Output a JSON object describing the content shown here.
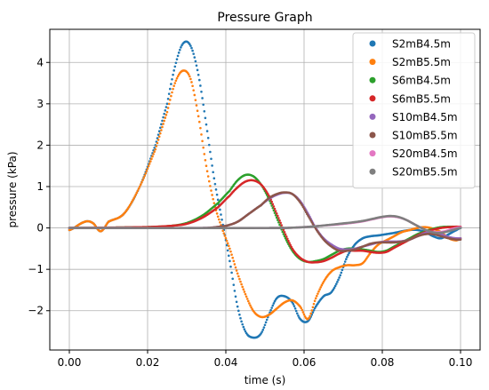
{
  "chart_data": {
    "type": "scatter",
    "title": "Pressure Graph",
    "xlabel": "time (s)",
    "ylabel": "pressure (kPa)",
    "xlim": [
      -0.005,
      0.105
    ],
    "ylim": [
      -2.95,
      4.8
    ],
    "xticks": [
      0.0,
      0.02,
      0.04,
      0.06,
      0.08,
      0.1
    ],
    "xtick_labels": [
      "0.00",
      "0.02",
      "0.04",
      "0.06",
      "0.08",
      "0.10"
    ],
    "yticks": [
      -2,
      -1,
      0,
      1,
      2,
      3,
      4
    ],
    "ytick_labels": [
      "−2",
      "−1",
      "0",
      "1",
      "2",
      "3",
      "4"
    ],
    "grid": true,
    "legend_position": "top-right",
    "series": [
      {
        "name": "S2mB4.5m",
        "color": "#1f77b4",
        "x": [
          0.0,
          0.004,
          0.006,
          0.008,
          0.01,
          0.014,
          0.018,
          0.022,
          0.025,
          0.027,
          0.029,
          0.031,
          0.033,
          0.035,
          0.037,
          0.039,
          0.041,
          0.043,
          0.045,
          0.047,
          0.049,
          0.051,
          0.053,
          0.055,
          0.057,
          0.059,
          0.061,
          0.063,
          0.065,
          0.067,
          0.069,
          0.071,
          0.073,
          0.075,
          0.077,
          0.079,
          0.081,
          0.083,
          0.085,
          0.087,
          0.089,
          0.091,
          0.093,
          0.095,
          0.097,
          0.099,
          0.1
        ],
        "y": [
          -0.05,
          0.15,
          0.12,
          -0.08,
          0.15,
          0.35,
          1.0,
          2.0,
          3.0,
          3.9,
          4.45,
          4.4,
          3.7,
          2.5,
          1.2,
          0.2,
          -0.8,
          -1.9,
          -2.5,
          -2.65,
          -2.55,
          -2.1,
          -1.7,
          -1.65,
          -1.8,
          -2.2,
          -2.25,
          -1.9,
          -1.65,
          -1.55,
          -1.2,
          -0.7,
          -0.4,
          -0.25,
          -0.2,
          -0.18,
          -0.15,
          -0.12,
          -0.08,
          -0.05,
          -0.05,
          -0.1,
          -0.2,
          -0.25,
          -0.15,
          -0.05,
          0.0
        ]
      },
      {
        "name": "S2mB5.5m",
        "color": "#ff7f0e",
        "x": [
          0.0,
          0.004,
          0.006,
          0.008,
          0.01,
          0.014,
          0.018,
          0.022,
          0.025,
          0.027,
          0.029,
          0.031,
          0.033,
          0.035,
          0.037,
          0.039,
          0.041,
          0.043,
          0.045,
          0.047,
          0.049,
          0.051,
          0.053,
          0.055,
          0.057,
          0.059,
          0.061,
          0.063,
          0.065,
          0.067,
          0.069,
          0.071,
          0.073,
          0.075,
          0.077,
          0.079,
          0.081,
          0.083,
          0.085,
          0.087,
          0.089,
          0.091,
          0.093,
          0.095,
          0.097,
          0.099,
          0.1
        ],
        "y": [
          -0.05,
          0.15,
          0.12,
          -0.08,
          0.15,
          0.35,
          1.0,
          1.9,
          2.8,
          3.5,
          3.8,
          3.6,
          2.7,
          1.5,
          0.6,
          0.0,
          -0.5,
          -1.1,
          -1.6,
          -2.0,
          -2.15,
          -2.1,
          -1.95,
          -1.8,
          -1.75,
          -1.9,
          -2.2,
          -1.7,
          -1.3,
          -1.05,
          -0.95,
          -0.9,
          -0.9,
          -0.85,
          -0.6,
          -0.4,
          -0.3,
          -0.2,
          -0.1,
          -0.05,
          0.0,
          0.02,
          -0.02,
          -0.1,
          -0.25,
          -0.3,
          -0.25
        ]
      },
      {
        "name": "S6mB4.5m",
        "color": "#2ca02c",
        "x": [
          0.0,
          0.02,
          0.026,
          0.03,
          0.034,
          0.038,
          0.041,
          0.043,
          0.045,
          0.047,
          0.049,
          0.051,
          0.053,
          0.055,
          0.057,
          0.059,
          0.061,
          0.063,
          0.065,
          0.067,
          0.069,
          0.071,
          0.073,
          0.075,
          0.077,
          0.079,
          0.081,
          0.083,
          0.085,
          0.087,
          0.089,
          0.091,
          0.093,
          0.095,
          0.097,
          0.099,
          0.1
        ],
        "y": [
          0.0,
          0.02,
          0.05,
          0.12,
          0.3,
          0.6,
          0.9,
          1.15,
          1.28,
          1.25,
          1.05,
          0.7,
          0.25,
          -0.2,
          -0.55,
          -0.75,
          -0.82,
          -0.8,
          -0.75,
          -0.65,
          -0.55,
          -0.5,
          -0.5,
          -0.52,
          -0.55,
          -0.58,
          -0.55,
          -0.45,
          -0.35,
          -0.25,
          -0.15,
          -0.08,
          -0.02,
          0.02,
          0.03,
          0.03,
          0.02
        ]
      },
      {
        "name": "S6mB5.5m",
        "color": "#d62728",
        "x": [
          0.0,
          0.02,
          0.026,
          0.03,
          0.034,
          0.038,
          0.041,
          0.043,
          0.045,
          0.047,
          0.049,
          0.051,
          0.053,
          0.055,
          0.057,
          0.059,
          0.061,
          0.063,
          0.065,
          0.067,
          0.069,
          0.071,
          0.073,
          0.075,
          0.077,
          0.079,
          0.081,
          0.083,
          0.085,
          0.087,
          0.089,
          0.091,
          0.093,
          0.095,
          0.097,
          0.099,
          0.1
        ],
        "y": [
          0.0,
          0.02,
          0.05,
          0.1,
          0.25,
          0.5,
          0.78,
          0.98,
          1.12,
          1.15,
          1.05,
          0.78,
          0.35,
          -0.1,
          -0.5,
          -0.72,
          -0.82,
          -0.83,
          -0.8,
          -0.72,
          -0.62,
          -0.55,
          -0.55,
          -0.55,
          -0.58,
          -0.6,
          -0.58,
          -0.48,
          -0.38,
          -0.28,
          -0.18,
          -0.1,
          -0.04,
          0.0,
          0.02,
          0.03,
          0.03
        ]
      },
      {
        "name": "S10mB4.5m",
        "color": "#9467bd",
        "x": [
          0.0,
          0.035,
          0.04,
          0.043,
          0.046,
          0.049,
          0.051,
          0.053,
          0.055,
          0.057,
          0.059,
          0.061,
          0.063,
          0.065,
          0.067,
          0.069,
          0.071,
          0.073,
          0.075,
          0.077,
          0.079,
          0.081,
          0.083,
          0.085,
          0.087,
          0.089,
          0.091,
          0.093,
          0.095,
          0.097,
          0.099,
          0.1
        ],
        "y": [
          0.0,
          0.0,
          0.05,
          0.15,
          0.35,
          0.55,
          0.7,
          0.8,
          0.85,
          0.82,
          0.65,
          0.35,
          0.0,
          -0.25,
          -0.4,
          -0.5,
          -0.52,
          -0.5,
          -0.45,
          -0.4,
          -0.35,
          -0.33,
          -0.33,
          -0.32,
          -0.28,
          -0.2,
          -0.12,
          -0.1,
          -0.15,
          -0.22,
          -0.25,
          -0.25
        ]
      },
      {
        "name": "S10mB5.5m",
        "color": "#8c564b",
        "x": [
          0.0,
          0.035,
          0.04,
          0.043,
          0.046,
          0.049,
          0.051,
          0.053,
          0.055,
          0.057,
          0.059,
          0.061,
          0.063,
          0.065,
          0.067,
          0.069,
          0.071,
          0.073,
          0.075,
          0.077,
          0.079,
          0.081,
          0.083,
          0.085,
          0.087,
          0.089,
          0.091,
          0.093,
          0.095,
          0.097,
          0.099,
          0.1
        ],
        "y": [
          0.0,
          0.0,
          0.05,
          0.15,
          0.35,
          0.55,
          0.72,
          0.82,
          0.86,
          0.82,
          0.62,
          0.3,
          -0.02,
          -0.28,
          -0.45,
          -0.55,
          -0.55,
          -0.52,
          -0.45,
          -0.38,
          -0.35,
          -0.35,
          -0.35,
          -0.33,
          -0.28,
          -0.2,
          -0.15,
          -0.15,
          -0.2,
          -0.25,
          -0.28,
          -0.28
        ]
      },
      {
        "name": "S20mB4.5m",
        "color": "#e377c2",
        "x": [
          0.0,
          0.055,
          0.06,
          0.064,
          0.068,
          0.072,
          0.075,
          0.078,
          0.08,
          0.082,
          0.084,
          0.086,
          0.088,
          0.09,
          0.092,
          0.094,
          0.096,
          0.098,
          0.1
        ],
        "y": [
          0.0,
          0.0,
          0.02,
          0.05,
          0.08,
          0.12,
          0.16,
          0.22,
          0.26,
          0.28,
          0.26,
          0.2,
          0.1,
          0.0,
          -0.08,
          -0.1,
          -0.08,
          -0.02,
          0.02
        ]
      },
      {
        "name": "S20mB5.5m",
        "color": "#7f7f7f",
        "x": [
          0.0,
          0.055,
          0.06,
          0.064,
          0.068,
          0.072,
          0.075,
          0.078,
          0.08,
          0.082,
          0.084,
          0.086,
          0.088,
          0.09,
          0.092,
          0.094,
          0.096,
          0.098,
          0.1
        ],
        "y": [
          0.0,
          0.0,
          0.02,
          0.05,
          0.09,
          0.13,
          0.17,
          0.23,
          0.27,
          0.29,
          0.27,
          0.2,
          0.1,
          0.0,
          -0.08,
          -0.12,
          -0.1,
          -0.05,
          0.0
        ]
      }
    ]
  }
}
